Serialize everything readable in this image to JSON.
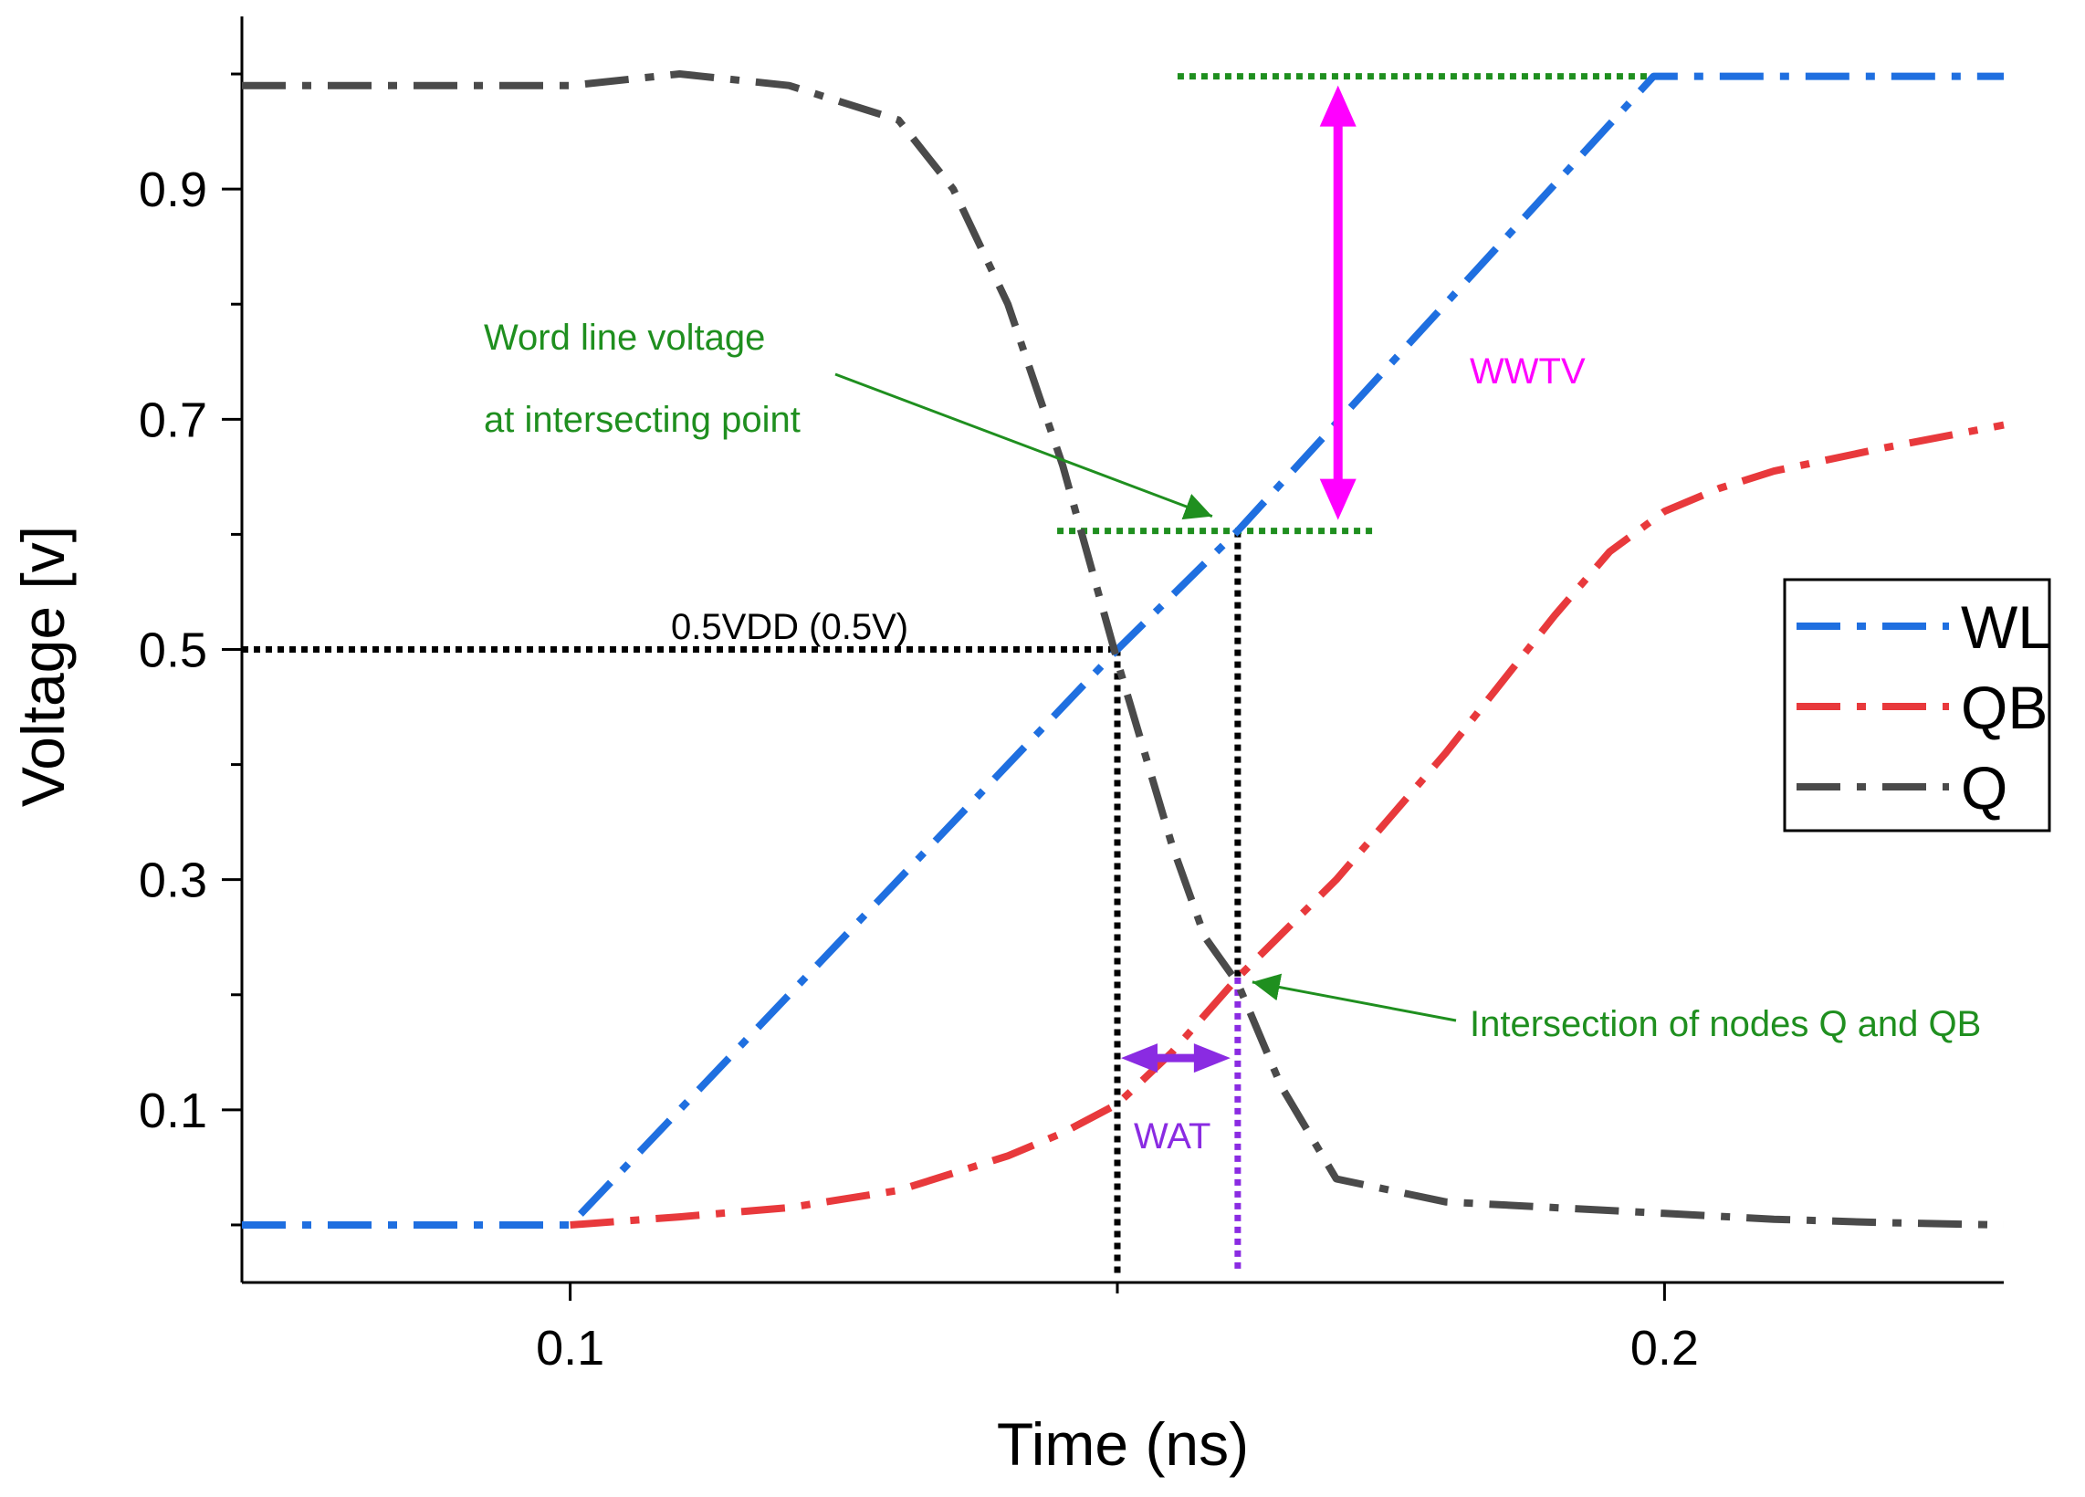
{
  "chart_data": {
    "type": "line",
    "xlabel": "Time (ns)",
    "ylabel": "Voltage [v]",
    "xlim": [
      0.07,
      0.231
    ],
    "ylim": [
      -0.05,
      1.05
    ],
    "x_ticks": [
      0.1,
      0.2
    ],
    "x_tick_labels": [
      "0.1",
      "0.2"
    ],
    "y_ticks": [
      0.1,
      0.3,
      0.5,
      0.7,
      0.9
    ],
    "y_tick_labels": [
      "0.1",
      "0.3",
      "0.5",
      "0.7",
      "0.9"
    ],
    "legend": {
      "position": "right",
      "entries": [
        "WL",
        "QB",
        "Q"
      ]
    },
    "series": [
      {
        "name": "WL",
        "color": "#1f6fe0",
        "x": [
          0.07,
          0.1,
          0.15,
          0.161,
          0.199,
          0.231
        ],
        "y": [
          0.0,
          0.0,
          0.5,
          0.603,
          0.998,
          0.998
        ]
      },
      {
        "name": "QB",
        "color": "#e8393c",
        "x": [
          0.1,
          0.11,
          0.12,
          0.13,
          0.14,
          0.145,
          0.15,
          0.155,
          0.161,
          0.17,
          0.18,
          0.19,
          0.195,
          0.2,
          0.205,
          0.21,
          0.22,
          0.231
        ],
        "y": [
          0.0,
          0.007,
          0.015,
          0.03,
          0.06,
          0.08,
          0.105,
          0.15,
          0.215,
          0.3,
          0.41,
          0.53,
          0.585,
          0.62,
          0.64,
          0.655,
          0.675,
          0.695
        ]
      },
      {
        "name": "Q",
        "color": "#4a4a4a",
        "x": [
          0.07,
          0.08,
          0.09,
          0.1,
          0.11,
          0.12,
          0.13,
          0.135,
          0.14,
          0.145,
          0.15,
          0.155,
          0.158,
          0.161,
          0.165,
          0.17,
          0.18,
          0.19,
          0.2,
          0.21,
          0.22,
          0.231
        ],
        "y": [
          0.99,
          0.99,
          0.99,
          0.99,
          1.0,
          0.99,
          0.96,
          0.9,
          0.8,
          0.66,
          0.49,
          0.33,
          0.25,
          0.21,
          0.12,
          0.04,
          0.02,
          0.015,
          0.01,
          0.005,
          0.002,
          0.0
        ]
      }
    ],
    "annotations": {
      "word_line_label_1": "Word line voltage",
      "word_line_label_2": "at intersecting point",
      "wwtv_label": "WWTV",
      "half_vdd_label": "0.5VDD (0.5V)",
      "wat_label": "WAT",
      "intersection_label": "Intersection of nodes Q and QB",
      "wl_intersect_voltage": 0.603,
      "intersect_time": 0.161,
      "intersect_qb_voltage": 0.215,
      "half_vdd_voltage": 0.5,
      "half_vdd_time": 0.15,
      "wl_max_voltage": 0.998,
      "colors": {
        "green": "#1f8f1f",
        "magenta": "#ff00ff",
        "purple": "#8a2be2",
        "black": "#000000"
      }
    }
  }
}
